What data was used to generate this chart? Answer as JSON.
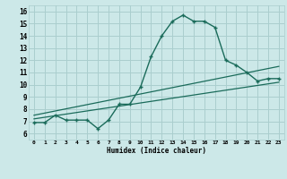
{
  "xlabel": "Humidex (Indice chaleur)",
  "bg_color": "#cce8e8",
  "grid_color": "#aacece",
  "line_color": "#1a6b5a",
  "xlim": [
    -0.5,
    23.5
  ],
  "ylim": [
    5.5,
    16.5
  ],
  "xticks": [
    0,
    1,
    2,
    3,
    4,
    5,
    6,
    7,
    8,
    9,
    10,
    11,
    12,
    13,
    14,
    15,
    16,
    17,
    18,
    19,
    20,
    21,
    22,
    23
  ],
  "yticks": [
    6,
    7,
    8,
    9,
    10,
    11,
    12,
    13,
    14,
    15,
    16
  ],
  "main_x": [
    0,
    1,
    2,
    3,
    4,
    5,
    6,
    7,
    8,
    9,
    10,
    11,
    12,
    13,
    14,
    15,
    16,
    17,
    18,
    19,
    20,
    21,
    22,
    23
  ],
  "main_y": [
    6.9,
    6.9,
    7.5,
    7.1,
    7.1,
    7.1,
    6.4,
    7.1,
    8.4,
    8.4,
    9.8,
    12.3,
    14.0,
    15.2,
    15.7,
    15.2,
    15.2,
    14.7,
    12.0,
    11.6,
    11.0,
    10.3,
    10.5,
    10.5
  ],
  "line2_x": [
    0,
    23
  ],
  "line2_y": [
    7.5,
    11.5
  ],
  "line3_x": [
    0,
    23
  ],
  "line3_y": [
    7.2,
    10.2
  ]
}
